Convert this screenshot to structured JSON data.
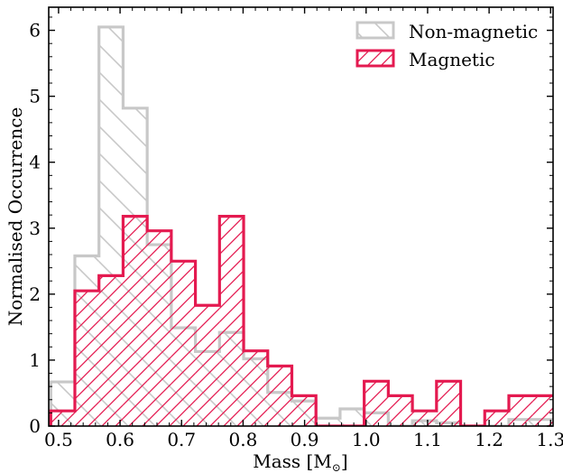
{
  "chart_data": {
    "type": "histogram",
    "xlabel": "Mass [M",
    "xlabel_sub": "⊙",
    "xlabel_end": "]",
    "ylabel": "Normalised Occurrence",
    "xlim": [
      0.484,
      1.304
    ],
    "ylim": [
      0,
      6.35
    ],
    "xticks": [
      0.5,
      0.6,
      0.7,
      0.8,
      0.9,
      1.0,
      1.1,
      1.2,
      1.3
    ],
    "xtick_labels": [
      "0.5",
      "0.6",
      "0.7",
      "0.8",
      "0.9",
      "1.0",
      "1.1",
      "1.2",
      "1.3"
    ],
    "xminor_step": 0.02,
    "yticks": [
      0,
      1,
      2,
      3,
      4,
      5,
      6
    ],
    "ytick_labels": [
      "0",
      "1",
      "2",
      "3",
      "4",
      "5",
      "6"
    ],
    "yminor_step": 0.2,
    "legend_position": "top-right",
    "series": [
      {
        "name": "Non-magnetic",
        "color": "#c8c8c8",
        "hatch": "backslash",
        "bin_edges": [
          0.4873,
          0.5265,
          0.5657,
          0.6049,
          0.6441,
          0.6833,
          0.7225,
          0.7617,
          0.8009,
          0.8401,
          0.8793,
          0.9185,
          0.9577,
          0.9969,
          1.0361,
          1.0753,
          1.1145,
          1.1537,
          1.1929,
          1.2321,
          1.2713,
          1.3105
        ],
        "values": [
          0.67,
          2.58,
          6.05,
          4.82,
          2.75,
          1.49,
          1.13,
          1.42,
          1.02,
          0.51,
          0.38,
          0.12,
          0.26,
          0.2,
          0.0,
          0.08,
          0.05,
          0.0,
          0.0,
          0.1,
          0.1
        ]
      },
      {
        "name": "Magnetic",
        "color": "#e41a50",
        "hatch": "slash",
        "bin_edges": [
          0.4873,
          0.5265,
          0.5657,
          0.6049,
          0.6441,
          0.6833,
          0.7225,
          0.7617,
          0.8009,
          0.8401,
          0.8793,
          0.9185,
          0.9577,
          0.9969,
          1.0361,
          1.0753,
          1.1145,
          1.1537,
          1.1929,
          1.2321,
          1.2713,
          1.3105
        ],
        "values": [
          0.23,
          2.05,
          2.28,
          3.18,
          2.96,
          2.5,
          1.83,
          3.18,
          1.14,
          0.91,
          0.46,
          0.0,
          0.0,
          0.68,
          0.46,
          0.23,
          0.68,
          0.0,
          0.23,
          0.46,
          0.46
        ]
      }
    ]
  }
}
